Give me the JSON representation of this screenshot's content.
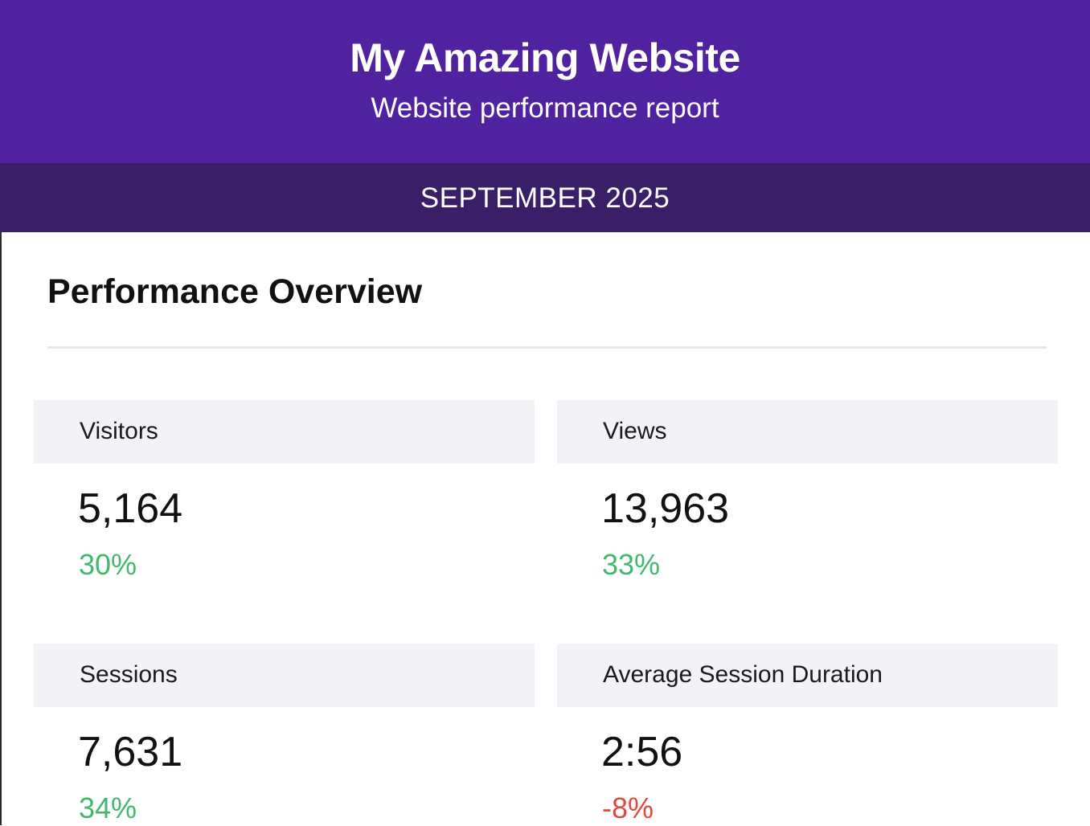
{
  "header": {
    "title": "My Amazing Website",
    "subtitle": "Website performance report",
    "background_color": "#5022a0"
  },
  "period": {
    "label": "SEPTEMBER 2025",
    "background_color": "#3a1f68"
  },
  "overview": {
    "title": "Performance Overview",
    "metrics": [
      {
        "label": "Visitors",
        "value": "5,164",
        "change": "30%",
        "trend": "up"
      },
      {
        "label": "Views",
        "value": "13,963",
        "change": "33%",
        "trend": "up"
      },
      {
        "label": "Sessions",
        "value": "7,631",
        "change": "34%",
        "trend": "up"
      },
      {
        "label": "Average Session Duration",
        "value": "2:56",
        "change": "-8%",
        "trend": "down"
      }
    ]
  },
  "colors": {
    "positive": "#3fb96b",
    "negative": "#e5483b",
    "card_header": "#f3f3f7"
  }
}
